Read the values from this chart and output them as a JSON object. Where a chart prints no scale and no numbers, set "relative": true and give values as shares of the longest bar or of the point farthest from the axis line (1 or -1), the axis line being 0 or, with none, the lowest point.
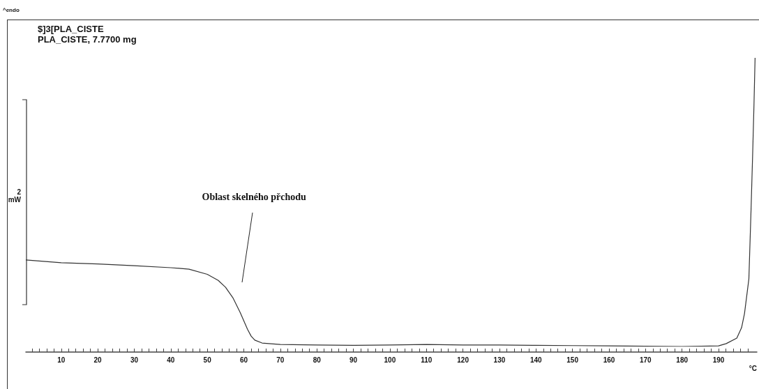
{
  "chart_data": {
    "type": "line",
    "title": "$]3[PLA_CISTE",
    "subtitle": "PLA_CISTE, 7.7700 mg",
    "xlabel": "°C",
    "ylabel": "2 mW",
    "relative": true,
    "marker": "none",
    "line_style": "solid",
    "grid": false,
    "annotations": [
      "^endo",
      "Oblast skelného přchodu"
    ],
    "xlim": [
      0.3,
      200.5
    ],
    "xticks": [
      {
        "value": 2,
        "label": null
      },
      {
        "value": 4,
        "label": null
      },
      {
        "value": 6,
        "label": null
      },
      {
        "value": 8,
        "label": null
      },
      10,
      {
        "value": 12,
        "label": null
      },
      {
        "value": 14,
        "label": null
      },
      {
        "value": 16,
        "label": null
      },
      {
        "value": 18,
        "label": null
      },
      20,
      {
        "value": 22,
        "label": null
      },
      {
        "value": 24,
        "label": null
      },
      {
        "value": 26,
        "label": null
      },
      {
        "value": 28,
        "label": null
      },
      30,
      {
        "value": 32,
        "label": null
      },
      {
        "value": 34,
        "label": null
      },
      {
        "value": 36,
        "label": null
      },
      {
        "value": 38,
        "label": null
      },
      40,
      {
        "value": 42,
        "label": null
      },
      {
        "value": 44,
        "label": null
      },
      {
        "value": 46,
        "label": null
      },
      {
        "value": 48,
        "label": null
      },
      50,
      {
        "value": 52,
        "label": null
      },
      {
        "value": 54,
        "label": null
      },
      {
        "value": 56,
        "label": null
      },
      {
        "value": 58,
        "label": null
      },
      60,
      {
        "value": 62,
        "label": null
      },
      {
        "value": 64,
        "label": null
      },
      {
        "value": 66,
        "label": null
      },
      {
        "value": 68,
        "label": null
      },
      70,
      {
        "value": 72,
        "label": null
      },
      {
        "value": 74,
        "label": null
      },
      {
        "value": 76,
        "label": null
      },
      {
        "value": 78,
        "label": null
      },
      80,
      {
        "value": 82,
        "label": null
      },
      {
        "value": 84,
        "label": null
      },
      {
        "value": 86,
        "label": null
      },
      {
        "value": 88,
        "label": null
      },
      90,
      {
        "value": 92,
        "label": null
      },
      {
        "value": 94,
        "label": null
      },
      {
        "value": 96,
        "label": null
      },
      {
        "value": 98,
        "label": null
      },
      100,
      {
        "value": 102,
        "label": null
      },
      {
        "value": 104,
        "label": null
      },
      {
        "value": 106,
        "label": null
      },
      {
        "value": 108,
        "label": null
      },
      110,
      {
        "value": 112,
        "label": null
      },
      {
        "value": 114,
        "label": null
      },
      {
        "value": 116,
        "label": null
      },
      {
        "value": 118,
        "label": null
      },
      120,
      {
        "value": 122,
        "label": null
      },
      {
        "value": 124,
        "label": null
      },
      {
        "value": 126,
        "label": null
      },
      {
        "value": 128,
        "label": null
      },
      130,
      {
        "value": 132,
        "label": null
      },
      {
        "value": 134,
        "label": null
      },
      {
        "value": 136,
        "label": null
      },
      {
        "value": 138,
        "label": null
      },
      140,
      {
        "value": 142,
        "label": null
      },
      {
        "value": 144,
        "label": null
      },
      {
        "value": 146,
        "label": null
      },
      {
        "value": 148,
        "label": null
      },
      150,
      {
        "value": 152,
        "label": null
      },
      {
        "value": 154,
        "label": null
      },
      {
        "value": 156,
        "label": null
      },
      {
        "value": 158,
        "label": null
      },
      160,
      {
        "value": 162,
        "label": null
      },
      {
        "value": 164,
        "label": null
      },
      {
        "value": 166,
        "label": null
      },
      {
        "value": 168,
        "label": null
      },
      170,
      {
        "value": 172,
        "label": null
      },
      {
        "value": 174,
        "label": null
      },
      {
        "value": 176,
        "label": null
      },
      {
        "value": 178,
        "label": null
      },
      180,
      {
        "value": 182,
        "label": null
      },
      {
        "value": 184,
        "label": null
      },
      {
        "value": 186,
        "label": null
      },
      {
        "value": 188,
        "label": null
      },
      190,
      {
        "value": 192,
        "label": null
      },
      {
        "value": 194,
        "label": null
      },
      {
        "value": 196,
        "label": null
      },
      {
        "value": 198,
        "label": null
      }
    ],
    "series": [
      {
        "color": "#333333",
        "x": [
          0.3,
          10,
          20,
          30,
          40,
          45,
          50,
          53,
          55,
          57,
          59,
          61,
          62,
          63,
          65,
          70,
          80,
          90,
          100,
          110,
          120,
          130,
          140,
          150,
          160,
          170,
          180,
          190,
          192.1,
          195,
          196.3,
          197.1,
          198.3,
          198.9,
          199.3,
          199.7,
          200
        ],
        "values": [
          0.3,
          0.29,
          0.286,
          0.28,
          0.273,
          0.268,
          0.25,
          0.229,
          0.205,
          0.169,
          0.118,
          0.06,
          0.036,
          0.022,
          0.012,
          0.007,
          0.005,
          0.004,
          0.005,
          0.007,
          0.005,
          0.005,
          0.004,
          0.003,
          0.002,
          0.001,
          0,
          0.002,
          0.01,
          0.029,
          0.065,
          0.114,
          0.234,
          0.476,
          0.65,
          0.838,
          1
        ]
      }
    ]
  }
}
